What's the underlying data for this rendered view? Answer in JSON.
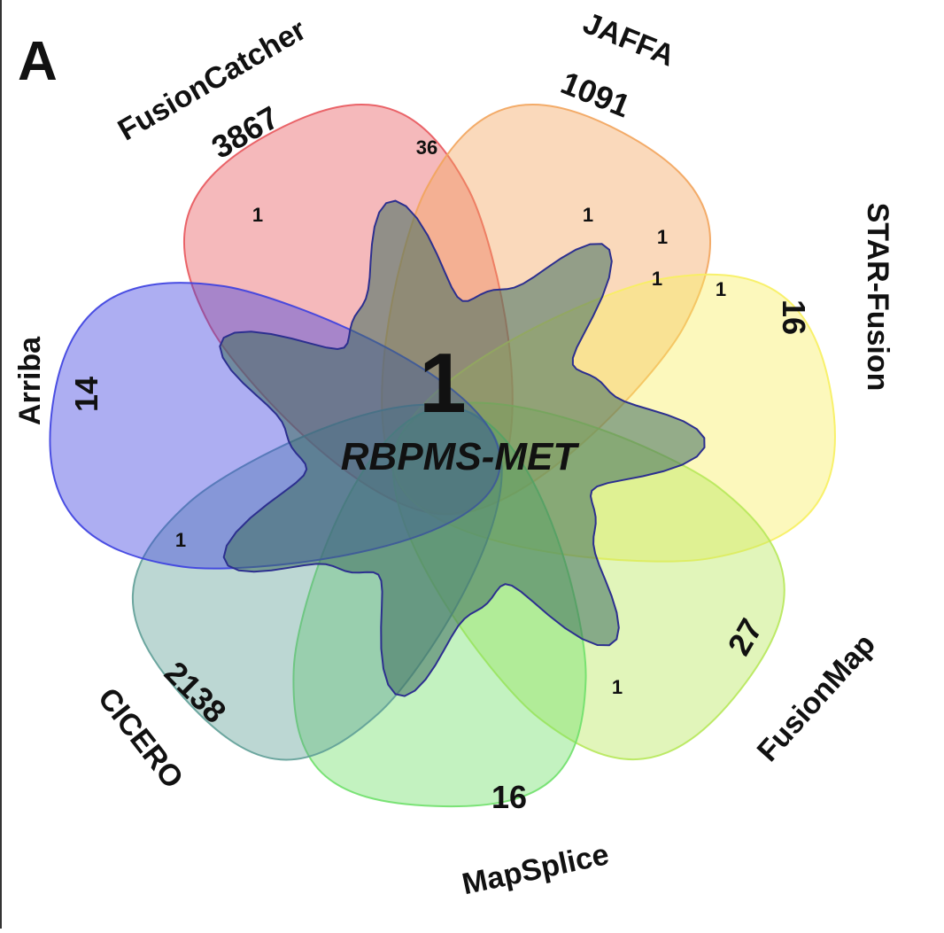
{
  "panel_label": "A",
  "center": {
    "count": "1",
    "name": "RBPMS-MET"
  },
  "sets": [
    {
      "name": "FusionCatcher",
      "unique": "3867",
      "color": "#e8575c"
    },
    {
      "name": "JAFFA",
      "unique": "1091",
      "color": "#f2a45c"
    },
    {
      "name": "STAR-Fusion",
      "unique": "16",
      "color": "#f7ef5f"
    },
    {
      "name": "FusionMap",
      "unique": "27",
      "color": "#b7e85a"
    },
    {
      "name": "MapSplice",
      "unique": "16",
      "color": "#6fe06a"
    },
    {
      "name": "CICERO",
      "unique": "2138",
      "color": "#5f9f97"
    },
    {
      "name": "Arriba",
      "unique": "14",
      "color": "#3b3fe0"
    }
  ],
  "intersections": [
    "36",
    "1",
    "1",
    "1",
    "1",
    "1",
    "1",
    "1"
  ]
}
